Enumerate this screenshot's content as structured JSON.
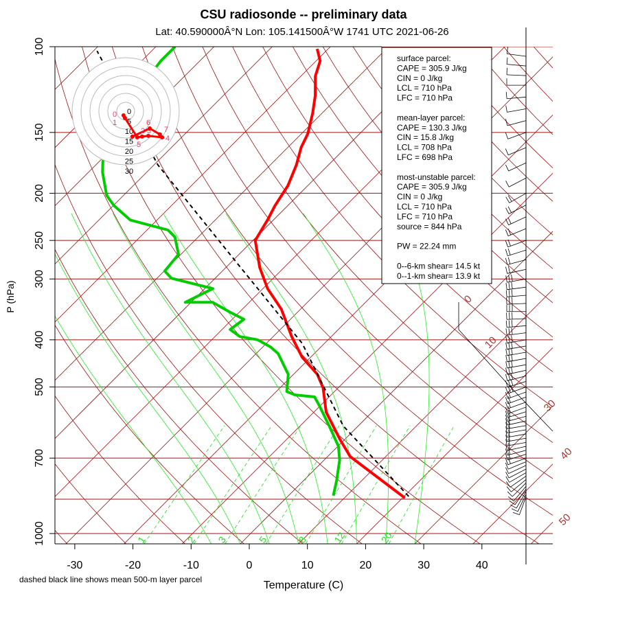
{
  "chart_data": {
    "type": "line",
    "title": "CSU radiosonde -- preliminary data",
    "subtitle": "Lat: 40.590000Â°N Lon: 105.141500Â°W    1741 UTC  2021-06-26",
    "xlabel": "Temperature (C)",
    "ylabel": "P (hPa)",
    "xlim": [
      -35,
      50
    ],
    "ylim": [
      1050,
      100
    ],
    "x_ticks": [
      "-30",
      "-20",
      "-10",
      "0",
      "10",
      "20",
      "30",
      "40"
    ],
    "x_tick_values": [
      -30,
      -20,
      -10,
      0,
      10,
      20,
      30,
      40
    ],
    "y_ticks": [
      "100",
      "150",
      "200",
      "250",
      "300",
      "400",
      "500",
      "700",
      "1000"
    ],
    "y_tick_values": [
      100,
      150,
      200,
      250,
      300,
      400,
      500,
      700,
      1000
    ],
    "isobars": [
      100,
      150,
      200,
      250,
      300,
      400,
      500,
      700,
      850,
      1000
    ],
    "isotherm_labels": [
      "0",
      "10",
      "30",
      "40",
      "50"
    ],
    "isotherm_label_values": [
      0,
      10,
      30,
      40,
      50
    ],
    "mixing_ratio_labels": [
      "1",
      "2",
      "3",
      "5",
      "8",
      "12",
      "20"
    ],
    "mixing_ratio_values": [
      1,
      2,
      3,
      5,
      8,
      12,
      20
    ],
    "footnote": "dashed black line shows mean 500-m layer parcel",
    "series": [
      {
        "name": "temperature",
        "color": "#ff0000",
        "p": [
          845,
          695,
          641,
          563,
          502,
          471,
          434,
          394,
          346,
          314,
          284,
          250,
          227,
          212,
          193,
          175,
          161,
          151,
          137,
          126,
          115,
          107,
          101
        ],
        "t": [
          20.4,
          3.9,
          -0.8,
          -7.9,
          -12.6,
          -15.9,
          -21.5,
          -26.8,
          -33.3,
          -39.2,
          -44.2,
          -49.6,
          -51,
          -52.2,
          -53.4,
          -55.5,
          -57.7,
          -58.9,
          -61.6,
          -64.2,
          -67.5,
          -69.3,
          -71.9
        ]
      },
      {
        "name": "dewpoint",
        "color": "#00cc00",
        "p": [
          836,
          779,
          707,
          662,
          601,
          545,
          524,
          519,
          511,
          471,
          427,
          414,
          400,
          394,
          381,
          363,
          351,
          335,
          335,
          319,
          314,
          299,
          289,
          267,
          246,
          238,
          227,
          212,
          202,
          181,
          172,
          150,
          130,
          107,
          100
        ],
        "t": [
          7.7,
          5.7,
          2.7,
          0.1,
          -5.0,
          -10.3,
          -12.5,
          -16.2,
          -18.2,
          -20.9,
          -26.2,
          -28.6,
          -32.1,
          -35.7,
          -38.6,
          -38.0,
          -41.6,
          -46.3,
          -51.0,
          -49.2,
          -48.6,
          -57.5,
          -59.9,
          -60.4,
          -64.0,
          -66.4,
          -74.6,
          -79.9,
          -82.9,
          -87.6,
          -89.4,
          -92,
          -95,
          -96.7,
          -96.7
        ]
      },
      {
        "name": "mean-layer parcel",
        "color": "#000000",
        "dashed": true,
        "p": [
          839,
          601,
          407,
          284,
          175,
          102
        ],
        "t": [
          20.8,
          -2.6,
          -23.8,
          -47.5,
          -79.3,
          -109.4
        ]
      }
    ],
    "hodograph": {
      "ring_labels": [
        "0",
        "5",
        "10",
        "15",
        "20",
        "25",
        "30"
      ],
      "ring_values": [
        0,
        5,
        10,
        15,
        20,
        25,
        30
      ],
      "u": [
        -1.2,
        -0.4,
        6.5,
        9.2,
        12.7,
        20.4,
        19.2,
        13.5,
        3.8
      ],
      "v": [
        -2.3,
        -3.8,
        -14.6,
        -14.2,
        -13.8,
        -14.6,
        -13,
        -9.6,
        -14.2
      ],
      "point_labels": [
        "0",
        "1",
        "5",
        "2",
        "3",
        "4",
        "7",
        "6",
        ""
      ]
    },
    "winds": {
      "p": [
        840,
        800,
        750,
        700,
        650,
        600,
        550,
        500,
        450,
        400,
        350,
        300,
        250,
        200,
        150,
        120,
        100
      ],
      "speed_kt": [
        8,
        10,
        12,
        15,
        18,
        20,
        22,
        25,
        28,
        30,
        30,
        25,
        20,
        15,
        10,
        12,
        15
      ],
      "dir_deg": [
        200,
        220,
        240,
        250,
        260,
        260,
        250,
        250,
        260,
        260,
        270,
        260,
        250,
        240,
        250,
        270,
        280
      ]
    }
  },
  "parcel_box": {
    "lines": [
      "surface parcel:",
      "CAPE = 305.9 J/kg",
      "CIN = 0 J/kg",
      "LCL = 710 hPa",
      "LFC = 710 hPa",
      "",
      "mean-layer parcel:",
      "CAPE = 130.3 J/kg",
      "CIN = 15.8 J/kg",
      "LCL = 708 hPa",
      "LFC = 698 hPa",
      "",
      "most-unstable parcel:",
      "CAPE = 305.9 J/kg",
      "CIN = 0 J/kg",
      "LCL = 710 hPa",
      "LFC = 710 hPa",
      "source = 844 hPa",
      "",
      "PW =  22.24 mm",
      "",
      "0--6-km shear= 14.5 kt",
      "0--1-km shear= 13.9 kt"
    ]
  }
}
